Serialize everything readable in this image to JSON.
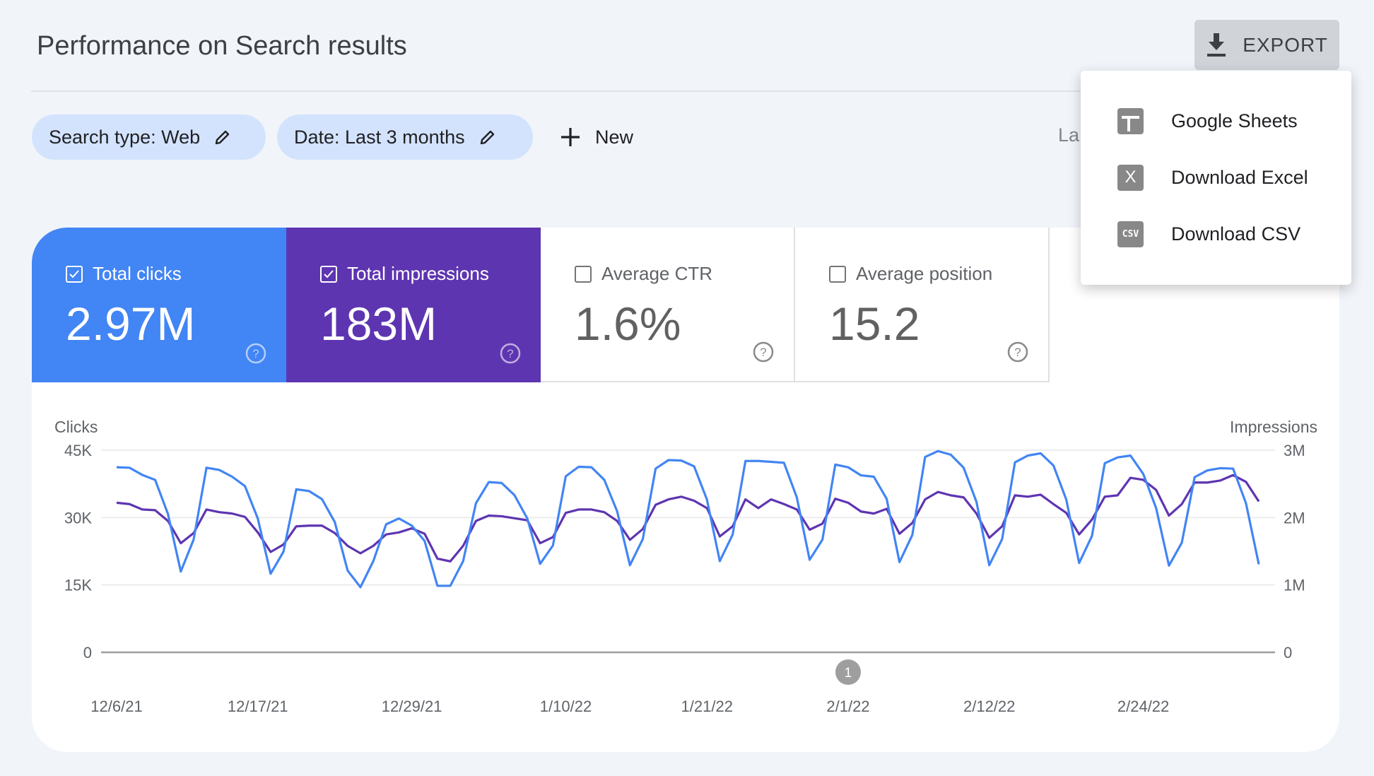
{
  "header": {
    "title": "Performance on Search results",
    "export_label": "EXPORT"
  },
  "filters": {
    "chips": [
      {
        "label": "Search type: Web"
      },
      {
        "label": "Date: Last 3 months"
      }
    ],
    "new_label": "New",
    "partial_text": "La"
  },
  "export_menu": {
    "items": [
      {
        "label": "Google Sheets",
        "icon": "sheets-icon"
      },
      {
        "label": "Download Excel",
        "icon": "excel-icon",
        "glyph": "X"
      },
      {
        "label": "Download CSV",
        "icon": "csv-icon",
        "glyph": "CSV"
      }
    ]
  },
  "metrics": [
    {
      "label": "Total clicks",
      "value": "2.97M",
      "checked": true,
      "color": "#4285f4"
    },
    {
      "label": "Total impressions",
      "value": "183M",
      "checked": true,
      "color": "#5e35b1"
    },
    {
      "label": "Average CTR",
      "value": "1.6%",
      "checked": false
    },
    {
      "label": "Average position",
      "value": "15.2",
      "checked": false
    }
  ],
  "chart_data": {
    "type": "line",
    "ylabel_left": "Clicks",
    "ylabel_right": "Impressions",
    "left_ticks": [
      "0",
      "15K",
      "30K",
      "45K"
    ],
    "right_ticks": [
      "0",
      "1M",
      "2M",
      "3M"
    ],
    "ylim_left": [
      0,
      45000
    ],
    "ylim_right": [
      0,
      3000000
    ],
    "x_start": "12/6/21",
    "x_ticks": [
      {
        "label": "12/6/21",
        "day": 0
      },
      {
        "label": "12/17/21",
        "day": 11
      },
      {
        "label": "12/29/21",
        "day": 23
      },
      {
        "label": "1/10/22",
        "day": 35
      },
      {
        "label": "1/21/22",
        "day": 46
      },
      {
        "label": "2/1/22",
        "day": 57
      },
      {
        "label": "2/12/22",
        "day": 68
      },
      {
        "label": "2/24/22",
        "day": 80
      }
    ],
    "annotations": [
      {
        "label": "1",
        "day": 57
      }
    ],
    "grid": true,
    "series": [
      {
        "name": "Clicks",
        "axis": "left",
        "color": "#4285f4",
        "values": [
          41.2,
          41.1,
          39.5,
          38.4,
          30.8,
          18.0,
          25.1,
          41.1,
          40.6,
          39.1,
          37.0,
          29.8,
          17.5,
          22.4,
          36.3,
          35.9,
          34.1,
          29.0,
          18.2,
          14.5,
          20.3,
          28.5,
          29.8,
          28.2,
          24.8,
          14.8,
          14.8,
          20.3,
          33.2,
          37.9,
          37.7,
          35.0,
          29.8,
          19.7,
          23.8,
          39.2,
          41.3,
          41.2,
          38.4,
          31.4,
          19.4,
          25.2,
          40.9,
          42.8,
          42.7,
          41.4,
          34.0,
          20.3,
          26.2,
          42.6,
          42.6,
          42.4,
          42.2,
          34.5,
          20.6,
          25.1,
          41.8,
          41.2,
          39.4,
          39.1,
          34.2,
          20.1,
          26.1,
          43.5,
          44.8,
          44.0,
          41.1,
          33.5,
          19.4,
          25.2,
          42.3,
          43.8,
          44.3,
          41.6,
          34.0,
          19.9,
          25.9,
          42.1,
          43.4,
          43.8,
          39.7,
          32.1,
          19.3,
          24.4,
          39.0,
          40.5,
          41.0,
          40.9,
          33.2,
          19.6
        ],
        "unit": "thousands"
      },
      {
        "name": "Impressions",
        "axis": "right",
        "color": "#5e35b1",
        "values": [
          2.22,
          2.2,
          2.12,
          2.11,
          1.95,
          1.62,
          1.77,
          2.12,
          2.08,
          2.06,
          2.01,
          1.78,
          1.49,
          1.6,
          1.87,
          1.88,
          1.88,
          1.77,
          1.58,
          1.47,
          1.58,
          1.75,
          1.78,
          1.84,
          1.76,
          1.39,
          1.35,
          1.58,
          1.95,
          2.03,
          2.02,
          1.99,
          1.96,
          1.62,
          1.71,
          2.07,
          2.12,
          2.12,
          2.08,
          1.95,
          1.67,
          1.83,
          2.19,
          2.27,
          2.31,
          2.25,
          2.14,
          1.72,
          1.87,
          2.27,
          2.14,
          2.27,
          2.2,
          2.12,
          1.82,
          1.91,
          2.28,
          2.22,
          2.09,
          2.06,
          2.13,
          1.76,
          1.92,
          2.27,
          2.38,
          2.33,
          2.3,
          2.06,
          1.7,
          1.87,
          2.33,
          2.31,
          2.34,
          2.2,
          2.07,
          1.75,
          1.97,
          2.31,
          2.33,
          2.59,
          2.56,
          2.41,
          2.03,
          2.2,
          2.52,
          2.52,
          2.55,
          2.63,
          2.53,
          2.24
        ],
        "unit": "millions"
      }
    ]
  }
}
